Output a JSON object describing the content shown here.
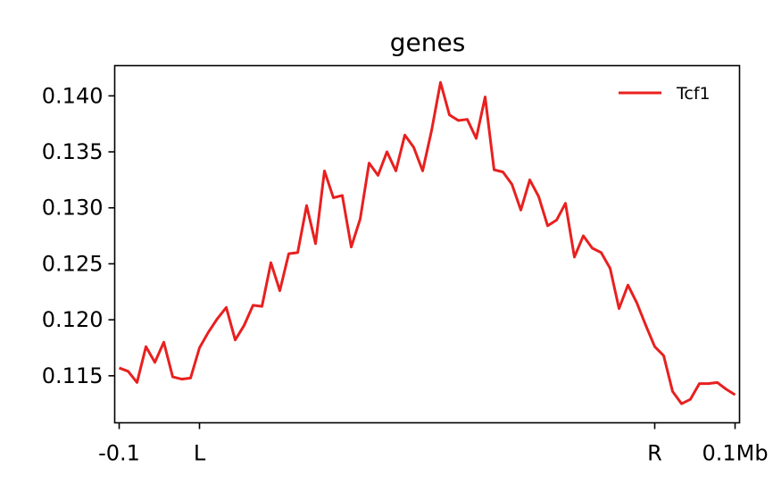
{
  "chart_data": {
    "type": "line",
    "title": "genes",
    "xlabel": "",
    "ylabel": "",
    "ylim": [
      0.1108,
      0.1427
    ],
    "yticks": [
      0.115,
      0.12,
      0.125,
      0.13,
      0.135,
      0.14
    ],
    "ytick_labels": [
      "0.115",
      "0.120",
      "0.125",
      "0.130",
      "0.135",
      "0.140"
    ],
    "xlim": [
      -0.5,
      69.5
    ],
    "xticks": [
      0,
      9,
      60,
      69
    ],
    "xtick_labels": [
      "-0.1",
      "L",
      "R",
      "0.1Mb"
    ],
    "grid": false,
    "legend_position": "top-right",
    "series": [
      {
        "name": "Tcf1",
        "color": "#e8201f",
        "values": [
          0.1157,
          0.1154,
          0.1144,
          0.1176,
          0.1162,
          0.118,
          0.1149,
          0.1147,
          0.1148,
          0.1175,
          0.1189,
          0.1201,
          0.1211,
          0.1182,
          0.1195,
          0.1213,
          0.1212,
          0.1251,
          0.1226,
          0.1259,
          0.126,
          0.1302,
          0.1268,
          0.1333,
          0.1309,
          0.1311,
          0.1265,
          0.129,
          0.134,
          0.1329,
          0.135,
          0.1333,
          0.1365,
          0.1354,
          0.1333,
          0.1369,
          0.1412,
          0.1383,
          0.1378,
          0.1379,
          0.1362,
          0.1399,
          0.1334,
          0.1332,
          0.1321,
          0.1298,
          0.1325,
          0.131,
          0.1284,
          0.1289,
          0.1304,
          0.1256,
          0.1275,
          0.1264,
          0.126,
          0.1246,
          0.121,
          0.1231,
          0.1215,
          0.1195,
          0.1176,
          0.1168,
          0.1136,
          0.1125,
          0.1129,
          0.1143,
          0.1143,
          0.1144,
          0.1138,
          0.1133
        ]
      }
    ]
  }
}
